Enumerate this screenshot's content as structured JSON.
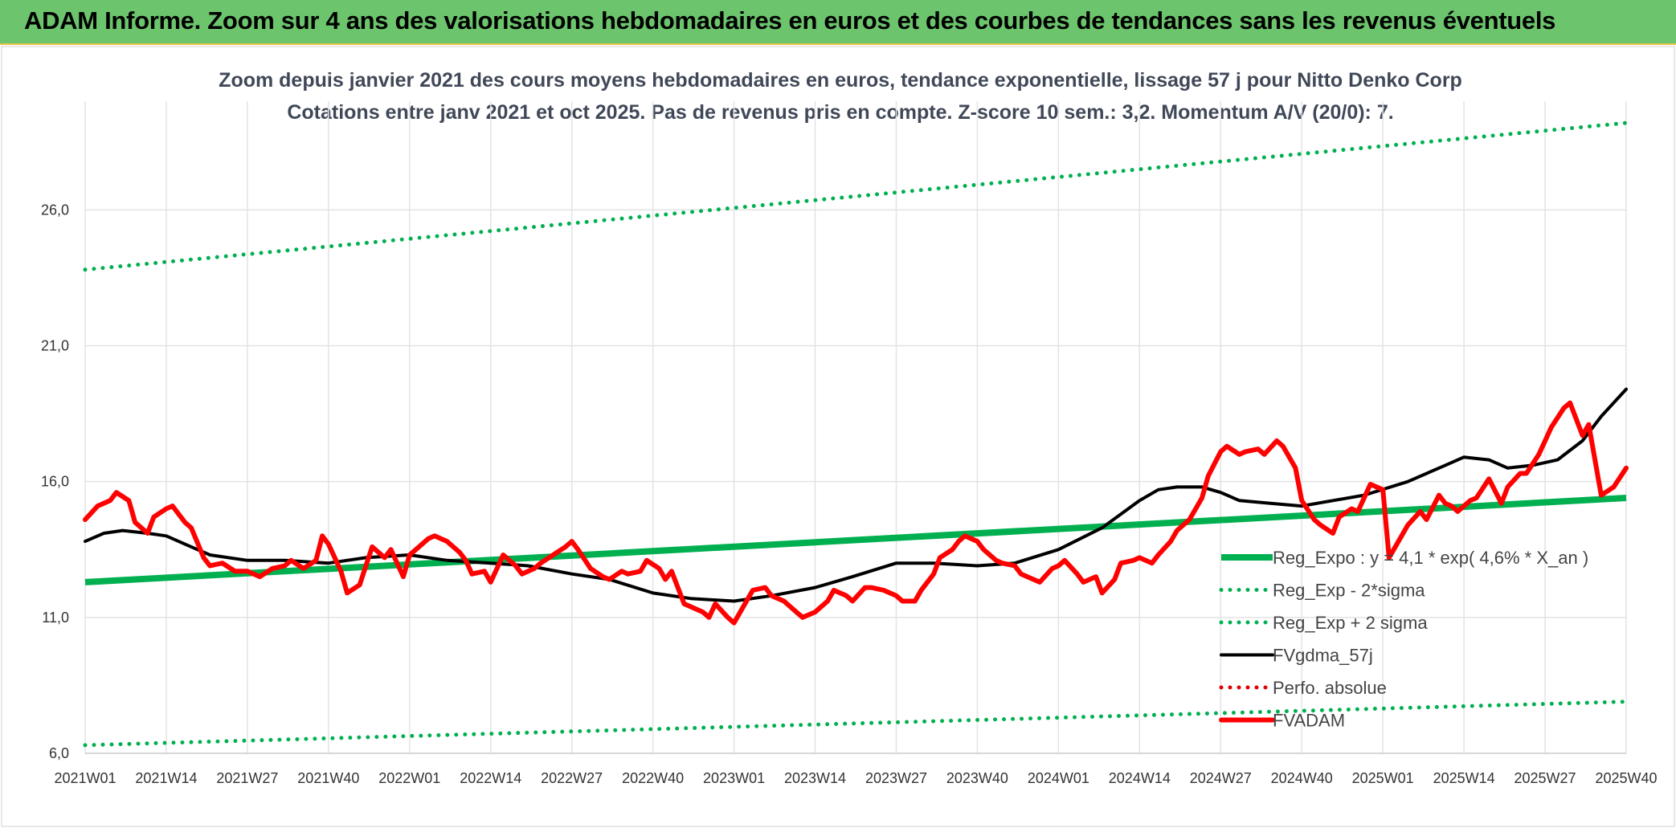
{
  "header": {
    "title": "ADAM Informe. Zoom sur 4 ans des valorisations hebdomadaires en euros et des courbes de tendances sans les revenus éventuels"
  },
  "chart_data": {
    "type": "line",
    "title": "Zoom depuis janvier 2021 des cours moyens hebdomadaires en euros, tendance exponentielle, lissage 57 j pour Nitto Denko Corp",
    "subtitle": "Cotations entre janv 2021 et oct 2025. Pas de revenus pris en compte. Z-score 10 sem.: 3,2. Momentum A/V (20/0): 7.",
    "xlabel": "",
    "ylabel": "",
    "ylim": [
      6.0,
      30.0
    ],
    "yticks": [
      "6,0",
      "11,0",
      "16,0",
      "21,0",
      "26,0"
    ],
    "ytick_values": [
      6,
      11,
      16,
      21,
      26
    ],
    "grid": true,
    "legend_position": "bottom-right",
    "x_tick_labels": [
      "2021W01",
      "2021W14",
      "2021W27",
      "2021W40",
      "2022W01",
      "2022W14",
      "2022W27",
      "2022W40",
      "2023W01",
      "2023W14",
      "2023W27",
      "2023W40",
      "2024W01",
      "2024W14",
      "2024W27",
      "2024W40",
      "2025W01",
      "2025W14",
      "2025W27",
      "2025W40"
    ],
    "series": [
      {
        "name": "Reg_Expo : y = 4,1 * exp( 4,6% *  X_an )",
        "color": "#00b050",
        "style": "solid",
        "points": [
          [
            0,
            12.3
          ],
          [
            247,
            15.4
          ]
        ]
      },
      {
        "name": "Reg_Exp - 2*sigma",
        "color": "#00b050",
        "style": "dotted",
        "points": [
          [
            0,
            6.3
          ],
          [
            247,
            7.9
          ]
        ]
      },
      {
        "name": "Reg_Exp + 2 sigma",
        "color": "#00b050",
        "style": "dotted",
        "points": [
          [
            0,
            23.8
          ],
          [
            247,
            29.2
          ]
        ]
      },
      {
        "name": "FVgdma_57j",
        "color": "#000000",
        "style": "solid",
        "points": [
          [
            0,
            13.8
          ],
          [
            3,
            14.1
          ],
          [
            6,
            14.2
          ],
          [
            10,
            14.1
          ],
          [
            13,
            14.0
          ],
          [
            17,
            13.6
          ],
          [
            20,
            13.3
          ],
          [
            26,
            13.1
          ],
          [
            32,
            13.1
          ],
          [
            39,
            13.0
          ],
          [
            45,
            13.2
          ],
          [
            52,
            13.3
          ],
          [
            58,
            13.1
          ],
          [
            65,
            13.0
          ],
          [
            71,
            12.9
          ],
          [
            78,
            12.6
          ],
          [
            84,
            12.4
          ],
          [
            91,
            11.9
          ],
          [
            97,
            11.7
          ],
          [
            104,
            11.6
          ],
          [
            110,
            11.8
          ],
          [
            117,
            12.1
          ],
          [
            123,
            12.5
          ],
          [
            130,
            13.0
          ],
          [
            136,
            13.0
          ],
          [
            143,
            12.9
          ],
          [
            149,
            13.0
          ],
          [
            156,
            13.5
          ],
          [
            163,
            14.3
          ],
          [
            169,
            15.3
          ],
          [
            172,
            15.7
          ],
          [
            175,
            15.8
          ],
          [
            179,
            15.8
          ],
          [
            182,
            15.6
          ],
          [
            185,
            15.3
          ],
          [
            190,
            15.2
          ],
          [
            195,
            15.1
          ],
          [
            200,
            15.3
          ],
          [
            205,
            15.5
          ],
          [
            212,
            16.0
          ],
          [
            218,
            16.6
          ],
          [
            221,
            16.9
          ],
          [
            225,
            16.8
          ],
          [
            228,
            16.5
          ],
          [
            232,
            16.6
          ],
          [
            236,
            16.8
          ],
          [
            240,
            17.5
          ],
          [
            243,
            18.4
          ],
          [
            247,
            19.4
          ]
        ]
      },
      {
        "name": "Perfo. absolue",
        "color": "#e00000",
        "style": "dotted",
        "points": []
      },
      {
        "name": "FVADAM",
        "color": "#ff0000",
        "style": "solid",
        "points": [
          [
            0,
            14.6
          ],
          [
            2,
            15.1
          ],
          [
            4,
            15.3
          ],
          [
            5,
            15.6
          ],
          [
            7,
            15.3
          ],
          [
            8,
            14.5
          ],
          [
            10,
            14.1
          ],
          [
            11,
            14.7
          ],
          [
            13,
            15.0
          ],
          [
            14,
            15.1
          ],
          [
            16,
            14.5
          ],
          [
            17,
            14.3
          ],
          [
            19,
            13.2
          ],
          [
            20,
            12.9
          ],
          [
            22,
            13.0
          ],
          [
            24,
            12.7
          ],
          [
            26,
            12.7
          ],
          [
            28,
            12.5
          ],
          [
            30,
            12.8
          ],
          [
            32,
            12.9
          ],
          [
            33,
            13.1
          ],
          [
            35,
            12.8
          ],
          [
            37,
            13.1
          ],
          [
            38,
            14.0
          ],
          [
            39,
            13.7
          ],
          [
            41,
            12.7
          ],
          [
            42,
            11.9
          ],
          [
            44,
            12.2
          ],
          [
            45,
            12.9
          ],
          [
            46,
            13.6
          ],
          [
            48,
            13.2
          ],
          [
            49,
            13.5
          ],
          [
            51,
            12.5
          ],
          [
            52,
            13.3
          ],
          [
            53,
            13.5
          ],
          [
            55,
            13.9
          ],
          [
            56,
            14.0
          ],
          [
            58,
            13.8
          ],
          [
            60,
            13.4
          ],
          [
            61,
            13.1
          ],
          [
            62,
            12.6
          ],
          [
            64,
            12.7
          ],
          [
            65,
            12.3
          ],
          [
            67,
            13.3
          ],
          [
            69,
            12.9
          ],
          [
            70,
            12.6
          ],
          [
            72,
            12.8
          ],
          [
            73,
            13.0
          ],
          [
            75,
            13.3
          ],
          [
            77,
            13.6
          ],
          [
            78,
            13.8
          ],
          [
            79,
            13.5
          ],
          [
            81,
            12.8
          ],
          [
            83,
            12.5
          ],
          [
            84,
            12.4
          ],
          [
            86,
            12.7
          ],
          [
            87,
            12.6
          ],
          [
            89,
            12.7
          ],
          [
            90,
            13.1
          ],
          [
            92,
            12.8
          ],
          [
            93,
            12.4
          ],
          [
            94,
            12.7
          ],
          [
            96,
            11.5
          ],
          [
            97,
            11.4
          ],
          [
            99,
            11.2
          ],
          [
            100,
            11.0
          ],
          [
            101,
            11.5
          ],
          [
            103,
            11.0
          ],
          [
            104,
            10.8
          ],
          [
            106,
            11.6
          ],
          [
            107,
            12.0
          ],
          [
            109,
            12.1
          ],
          [
            110,
            11.8
          ],
          [
            112,
            11.6
          ],
          [
            114,
            11.2
          ],
          [
            115,
            11.0
          ],
          [
            117,
            11.2
          ],
          [
            119,
            11.6
          ],
          [
            120,
            12.0
          ],
          [
            122,
            11.8
          ],
          [
            123,
            11.6
          ],
          [
            125,
            12.1
          ],
          [
            126,
            12.1
          ],
          [
            128,
            12.0
          ],
          [
            130,
            11.8
          ],
          [
            131,
            11.6
          ],
          [
            133,
            11.6
          ],
          [
            134,
            12.0
          ],
          [
            136,
            12.6
          ],
          [
            137,
            13.2
          ],
          [
            139,
            13.5
          ],
          [
            140,
            13.8
          ],
          [
            141,
            14.0
          ],
          [
            143,
            13.8
          ],
          [
            144,
            13.5
          ],
          [
            146,
            13.1
          ],
          [
            147,
            13.0
          ],
          [
            149,
            12.9
          ],
          [
            150,
            12.6
          ],
          [
            152,
            12.4
          ],
          [
            153,
            12.3
          ],
          [
            155,
            12.8
          ],
          [
            156,
            12.9
          ],
          [
            157,
            13.1
          ],
          [
            159,
            12.6
          ],
          [
            160,
            12.3
          ],
          [
            162,
            12.5
          ],
          [
            163,
            11.9
          ],
          [
            165,
            12.4
          ],
          [
            166,
            13.0
          ],
          [
            168,
            13.1
          ],
          [
            169,
            13.2
          ],
          [
            171,
            13.0
          ],
          [
            172,
            13.3
          ],
          [
            174,
            13.8
          ],
          [
            175,
            14.2
          ],
          [
            177,
            14.6
          ],
          [
            179,
            15.4
          ],
          [
            180,
            16.2
          ],
          [
            182,
            17.1
          ],
          [
            183,
            17.3
          ],
          [
            185,
            17.0
          ],
          [
            186,
            17.1
          ],
          [
            188,
            17.2
          ],
          [
            189,
            17.0
          ],
          [
            191,
            17.5
          ],
          [
            192,
            17.3
          ],
          [
            194,
            16.5
          ],
          [
            195,
            15.3
          ],
          [
            197,
            14.6
          ],
          [
            198,
            14.4
          ],
          [
            200,
            14.1
          ],
          [
            201,
            14.7
          ],
          [
            203,
            15.0
          ],
          [
            204,
            14.9
          ],
          [
            206,
            15.9
          ],
          [
            207,
            15.8
          ],
          [
            208,
            15.7
          ],
          [
            209,
            13.2
          ],
          [
            211,
            14.0
          ],
          [
            212,
            14.4
          ],
          [
            214,
            14.9
          ],
          [
            215,
            14.6
          ],
          [
            217,
            15.5
          ],
          [
            218,
            15.2
          ],
          [
            219,
            15.1
          ],
          [
            220,
            14.9
          ],
          [
            222,
            15.3
          ],
          [
            223,
            15.4
          ],
          [
            225,
            16.1
          ],
          [
            227,
            15.2
          ],
          [
            228,
            15.8
          ],
          [
            230,
            16.3
          ],
          [
            231,
            16.3
          ],
          [
            233,
            17.0
          ],
          [
            234,
            17.5
          ],
          [
            235,
            18.0
          ],
          [
            237,
            18.7
          ],
          [
            238,
            18.9
          ],
          [
            240,
            17.7
          ],
          [
            241,
            18.1
          ],
          [
            243,
            15.5
          ],
          [
            245,
            15.8
          ],
          [
            247,
            16.5
          ]
        ]
      }
    ]
  }
}
